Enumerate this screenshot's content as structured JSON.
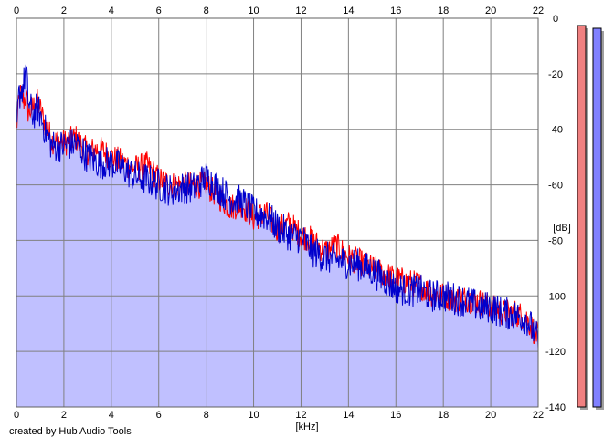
{
  "chart_data": {
    "type": "line",
    "title": "",
    "xlabel": "[kHz]",
    "ylabel": "[dB]",
    "xlim": [
      0,
      22
    ],
    "ylim": [
      -140,
      0
    ],
    "x_ticks": [
      "0",
      "2",
      "4",
      "6",
      "8",
      "10",
      "12",
      "14",
      "16",
      "18",
      "20",
      "22"
    ],
    "y_ticks": [
      "0",
      "-20",
      "-40",
      "-60",
      "-80",
      "-100",
      "-120",
      "-140"
    ],
    "grid": true,
    "fill_color": "#c0c0ff",
    "series": [
      {
        "color": "#ff0000",
        "x": [
          0,
          0.1,
          0.2,
          0.3,
          0.4,
          0.5,
          0.7,
          0.9,
          1.2,
          1.5,
          2,
          2.5,
          3,
          3.5,
          4,
          4.5,
          5,
          5.5,
          6,
          6.5,
          7,
          7.5,
          8,
          8.5,
          9,
          9.5,
          10,
          10.5,
          11,
          11.5,
          12,
          12.5,
          13,
          13.5,
          14,
          14.5,
          15,
          15.5,
          16,
          16.5,
          17,
          17.5,
          18,
          18.5,
          19,
          19.5,
          20,
          20.5,
          21,
          21.5,
          22
        ],
        "y": [
          -40,
          -30,
          -27,
          -30,
          -28,
          -34,
          -32,
          -30,
          -38,
          -44,
          -45,
          -43,
          -48,
          -47,
          -50,
          -52,
          -54,
          -53,
          -58,
          -60,
          -60,
          -60,
          -60,
          -64,
          -68,
          -67,
          -72,
          -70,
          -76,
          -74,
          -78,
          -80,
          -84,
          -82,
          -86,
          -88,
          -90,
          -92,
          -94,
          -95,
          -96,
          -99,
          -100,
          -101,
          -101,
          -102,
          -104,
          -106,
          -106,
          -108,
          -115
        ]
      },
      {
        "color": "#0000cc",
        "x": [
          0,
          0.1,
          0.2,
          0.3,
          0.4,
          0.5,
          0.7,
          0.9,
          1.2,
          1.5,
          2,
          2.5,
          3,
          3.5,
          4,
          4.5,
          5,
          5.5,
          6,
          6.5,
          7,
          7.5,
          8,
          8.5,
          9,
          9.5,
          10,
          10.5,
          11,
          11.5,
          12,
          12.5,
          13,
          13.5,
          14,
          14.5,
          15,
          15.5,
          16,
          16.5,
          17,
          17.5,
          18,
          18.5,
          19,
          19.5,
          20,
          20.5,
          21,
          21.5,
          22
        ],
        "y": [
          -42,
          -28,
          -26,
          -24,
          -18,
          -30,
          -35,
          -32,
          -40,
          -46,
          -46,
          -45,
          -50,
          -52,
          -52,
          -54,
          -57,
          -58,
          -60,
          -62,
          -61,
          -61,
          -57,
          -61,
          -65,
          -66,
          -70,
          -71,
          -75,
          -78,
          -79,
          -84,
          -86,
          -87,
          -88,
          -89,
          -91,
          -94,
          -97,
          -98,
          -98,
          -100,
          -100,
          -101,
          -102,
          -104,
          -104,
          -106,
          -107,
          -108,
          -116
        ]
      }
    ],
    "level_meters": [
      {
        "color": "#f08080"
      },
      {
        "color": "#8080ff"
      }
    ]
  },
  "credit": "created by Hub Audio Tools"
}
